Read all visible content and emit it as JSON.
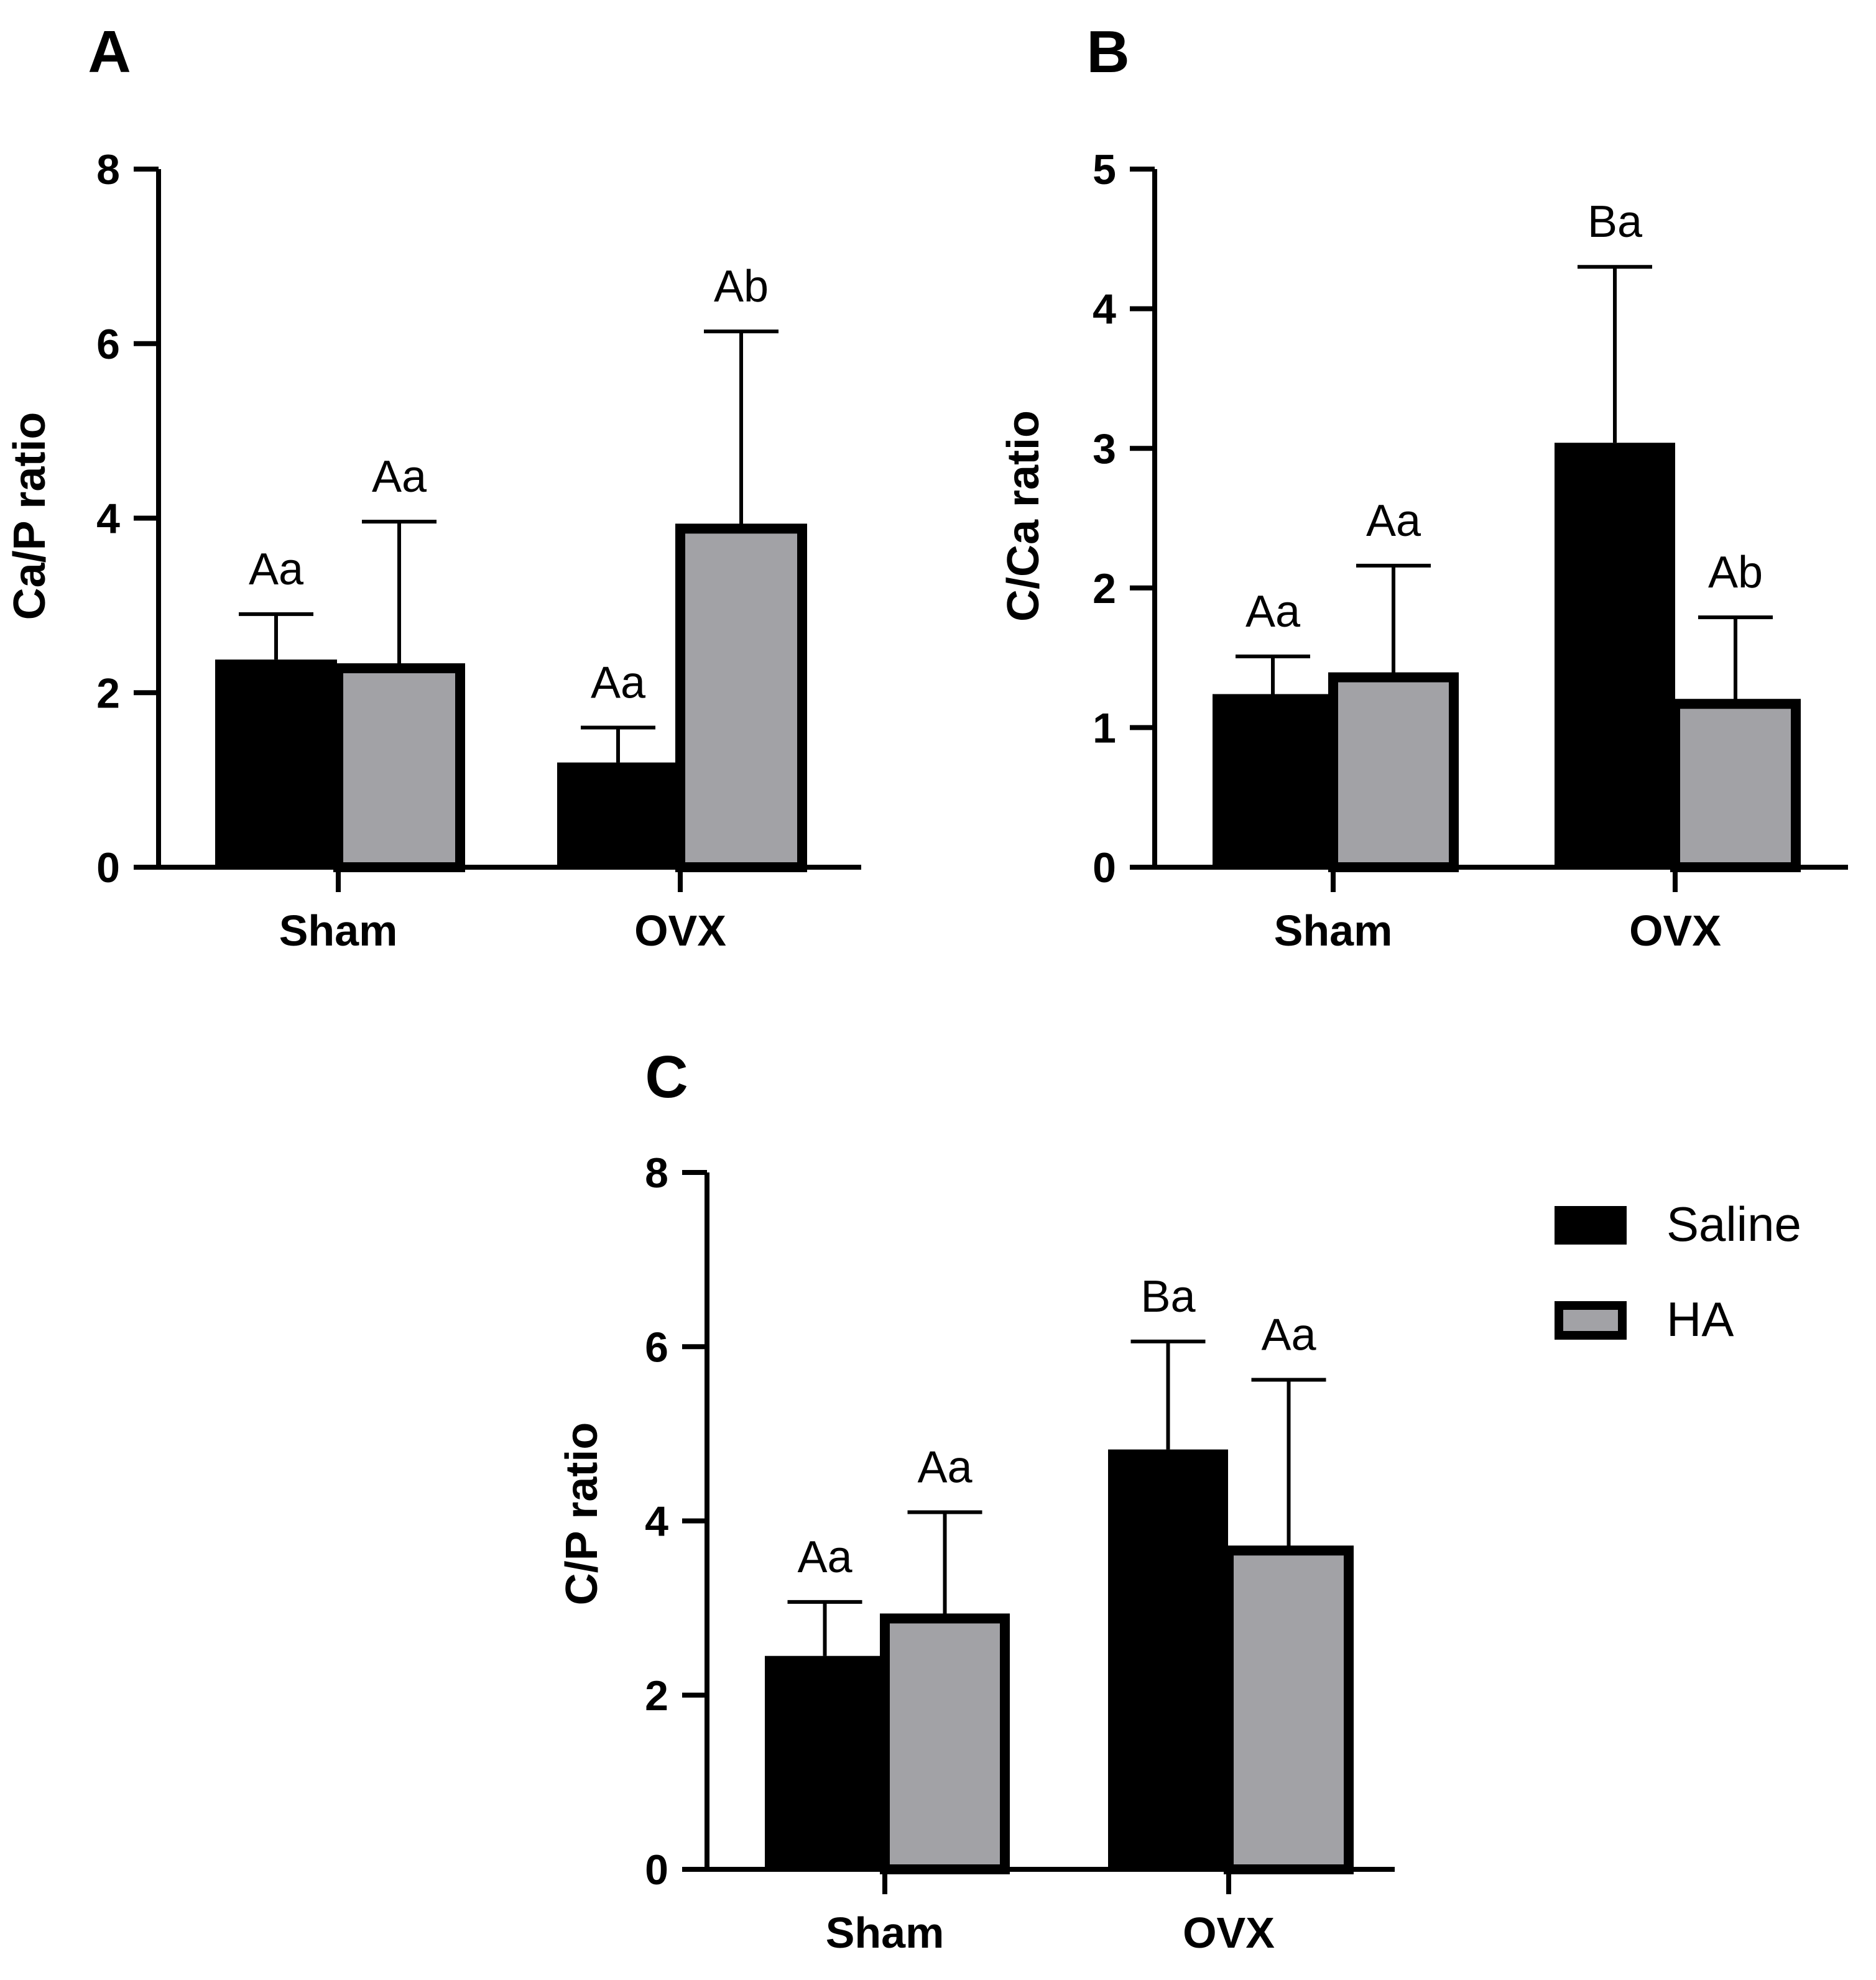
{
  "colors": {
    "saline": "#000000",
    "ha": "#a2a2a6",
    "axis": "#000000"
  },
  "legend": {
    "placement": "right of panel C",
    "entries": [
      {
        "label": "Saline",
        "series": "Saline"
      },
      {
        "label": "HA",
        "series": "HA"
      }
    ]
  },
  "chart_data": [
    {
      "panel": "A",
      "type": "bar",
      "title": "",
      "xlabel": "",
      "ylabel": "Ca/P ratio",
      "categories": [
        "Sham",
        "OVX"
      ],
      "ylim": [
        0,
        8
      ],
      "yticks": [
        0,
        2,
        4,
        6,
        8
      ],
      "grid": false,
      "series": [
        {
          "name": "Saline",
          "values": [
            2.38,
            1.2
          ],
          "errors": [
            0.52,
            0.4
          ],
          "annotations": [
            "Aa",
            "Aa"
          ]
        },
        {
          "name": "HA",
          "values": [
            2.28,
            3.88
          ],
          "errors": [
            1.68,
            2.26
          ],
          "annotations": [
            "Aa",
            "Ab"
          ]
        }
      ]
    },
    {
      "panel": "B",
      "type": "bar",
      "title": "",
      "xlabel": "",
      "ylabel": "C/Ca ratio",
      "categories": [
        "Sham",
        "OVX"
      ],
      "ylim": [
        0,
        5
      ],
      "yticks": [
        0,
        1,
        2,
        3,
        4,
        5
      ],
      "grid": false,
      "series": [
        {
          "name": "Saline",
          "values": [
            1.24,
            3.04
          ],
          "errors": [
            0.27,
            1.26
          ],
          "annotations": [
            "Aa",
            "Ba"
          ]
        },
        {
          "name": "HA",
          "values": [
            1.36,
            1.17
          ],
          "errors": [
            0.8,
            0.62
          ],
          "annotations": [
            "Aa",
            "Ab"
          ]
        }
      ]
    },
    {
      "panel": "C",
      "type": "bar",
      "title": "",
      "xlabel": "",
      "ylabel": "C/P ratio",
      "categories": [
        "Sham",
        "OVX"
      ],
      "ylim": [
        0,
        8
      ],
      "yticks": [
        0,
        2,
        4,
        6,
        8
      ],
      "grid": false,
      "series": [
        {
          "name": "Saline",
          "values": [
            2.45,
            4.82
          ],
          "errors": [
            0.62,
            1.24
          ],
          "annotations": [
            "Aa",
            "Ba"
          ]
        },
        {
          "name": "HA",
          "values": [
            2.88,
            3.66
          ],
          "errors": [
            1.22,
            1.96
          ],
          "annotations": [
            "Aa",
            "Aa"
          ]
        }
      ]
    }
  ]
}
